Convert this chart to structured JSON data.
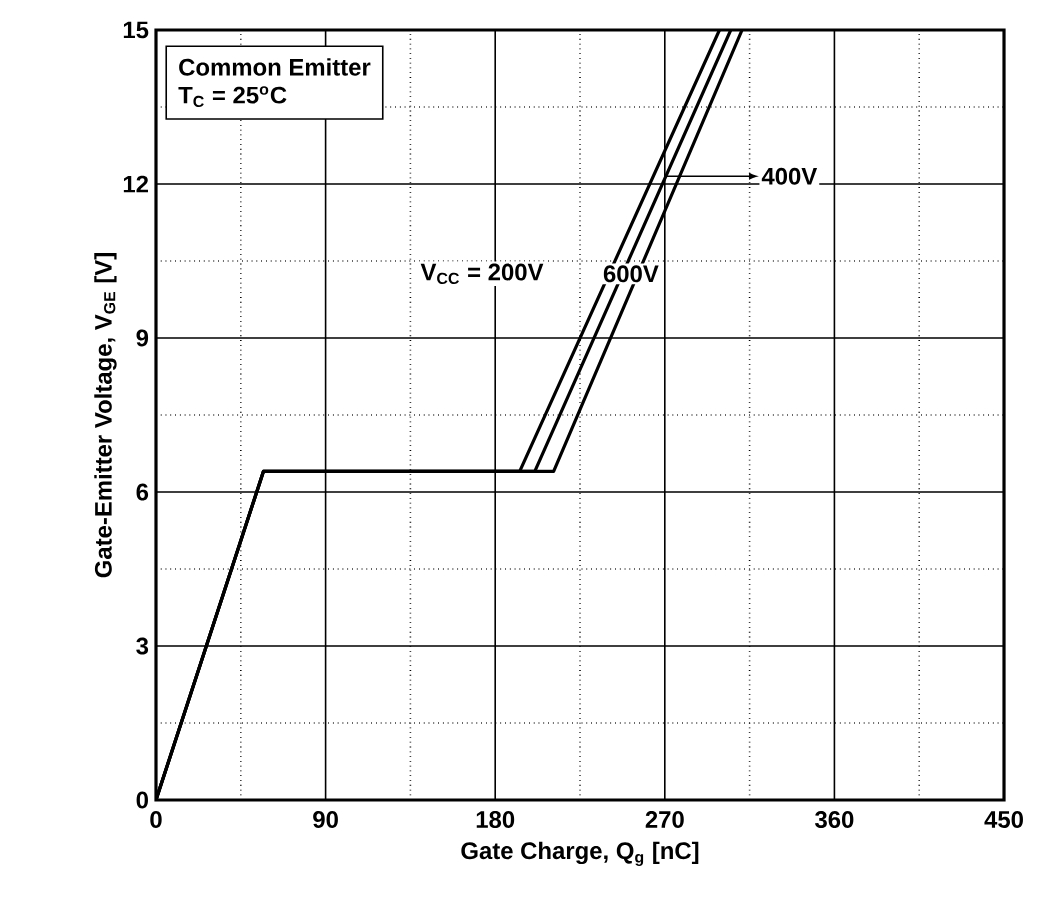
{
  "chart_data": {
    "type": "line",
    "xlabel": "Gate Charge, Q$_{g}$ [nC]",
    "ylabel": "Gate-Emitter Voltage, V$_{GE}$ [V]",
    "xlim": [
      0,
      450
    ],
    "ylim": [
      0,
      15
    ],
    "xticks": [
      0,
      90,
      180,
      270,
      360,
      450
    ],
    "yticks": [
      0,
      3,
      6,
      9,
      12,
      15
    ],
    "grid": true,
    "marker": "none",
    "line_style": "solid",
    "annotations": [
      "Common Emitter",
      "T$_{C}$ = 25$^{o}$C"
    ],
    "series": [
      {
        "name": "V$_{CC}$ = 200V",
        "color": "#000000",
        "x": [
          0,
          57,
          193,
          299
        ],
        "values": [
          0,
          6.4,
          6.4,
          15
        ]
      },
      {
        "name": "400V",
        "color": "#000000",
        "x": [
          0,
          57,
          201,
          305
        ],
        "values": [
          0,
          6.4,
          6.4,
          15
        ]
      },
      {
        "name": "600V",
        "color": "#000000",
        "x": [
          0,
          57,
          211,
          311
        ],
        "values": [
          0,
          6.4,
          6.4,
          15
        ]
      }
    ]
  }
}
